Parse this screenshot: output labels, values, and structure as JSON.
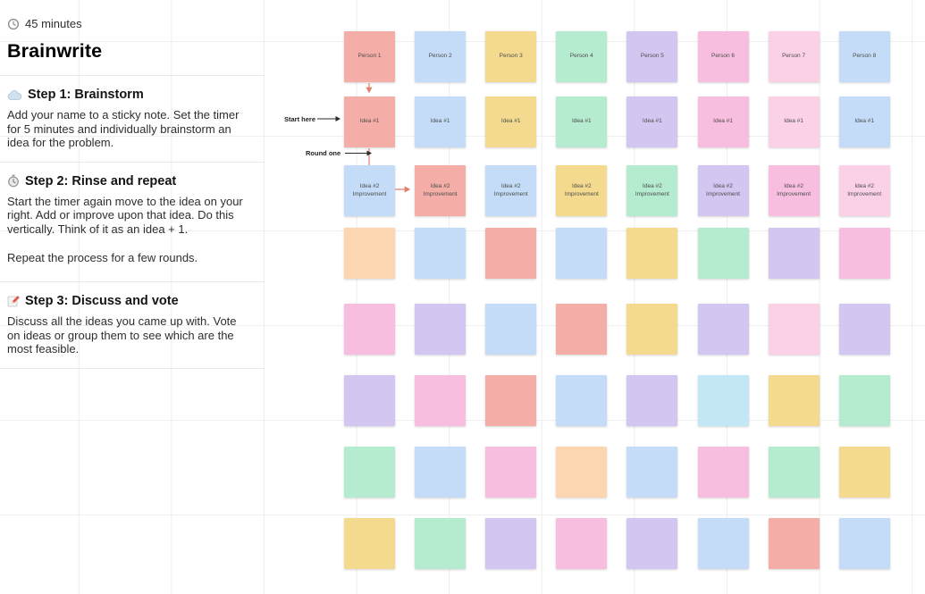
{
  "panel": {
    "duration": "45 minutes",
    "title": "Brainwrite",
    "steps": [
      {
        "icon": "cloud-icon",
        "heading": "Step 1: Brainstorm",
        "body": "Add your name to a sticky note. Set the timer for 5 minutes and individually brainstorm an idea for the problem."
      },
      {
        "icon": "timer-icon",
        "heading": "Step 2: Rinse and repeat",
        "body": "Start the timer again move to the idea on your right. Add or improve upon that idea. Do this vertically. Think of it as an idea + 1.",
        "body2": "Repeat the process for a few rounds."
      },
      {
        "icon": "memo-icon",
        "heading": "Step 3: Discuss and vote",
        "body": "Discuss all the ideas you came up with. Vote on ideas or group them to see which are the most feasible."
      }
    ]
  },
  "canvas": {
    "labels": {
      "start_here": "Start here",
      "round_one": "Round one"
    },
    "palette": {
      "red": "#f5aea7",
      "blue": "#c4dcf7",
      "yellow": "#f4da8e",
      "green": "#b5ebcf",
      "violet": "#d3c6f1",
      "pink": "#f8bedf",
      "lightpink": "#fad1e7",
      "peach": "#fbd6b1",
      "cyan": "#c3e7f4"
    },
    "connector_color": "#e0806f",
    "rows": [
      {
        "notes": [
          {
            "label": "Person 1",
            "color": "red"
          },
          {
            "label": "Person 2",
            "color": "blue"
          },
          {
            "label": "Person 3",
            "color": "yellow"
          },
          {
            "label": "Person 4",
            "color": "green"
          },
          {
            "label": "Person 5",
            "color": "violet"
          },
          {
            "label": "Person 6",
            "color": "pink"
          },
          {
            "label": "Person 7",
            "color": "lightpink"
          },
          {
            "label": "Person 8",
            "color": "blue"
          }
        ]
      },
      {
        "notes": [
          {
            "label": "Idea #1",
            "color": "red"
          },
          {
            "label": "Idea #1",
            "color": "blue"
          },
          {
            "label": "Idea #1",
            "color": "yellow"
          },
          {
            "label": "Idea #1",
            "color": "green"
          },
          {
            "label": "Idea #1",
            "color": "violet"
          },
          {
            "label": "Idea #1",
            "color": "pink"
          },
          {
            "label": "Idea #1",
            "color": "lightpink"
          },
          {
            "label": "Idea #1",
            "color": "blue"
          }
        ]
      },
      {
        "notes": [
          {
            "label": "Idea #2 Improvement",
            "color": "blue"
          },
          {
            "label": "Idea #2 Improvement",
            "color": "red"
          },
          {
            "label": "Idea #2 Improvement",
            "color": "blue"
          },
          {
            "label": "Idea #2 Improvement",
            "color": "yellow"
          },
          {
            "label": "Idea #2 Improvement",
            "color": "green"
          },
          {
            "label": "Idea #2 Improvement",
            "color": "violet"
          },
          {
            "label": "Idea #2 Improvement",
            "color": "pink"
          },
          {
            "label": "Idea #2 Improvement",
            "color": "lightpink"
          }
        ]
      },
      {
        "notes": [
          {
            "label": "",
            "color": "peach"
          },
          {
            "label": "",
            "color": "blue"
          },
          {
            "label": "",
            "color": "red"
          },
          {
            "label": "",
            "color": "blue"
          },
          {
            "label": "",
            "color": "yellow"
          },
          {
            "label": "",
            "color": "green"
          },
          {
            "label": "",
            "color": "violet"
          },
          {
            "label": "",
            "color": "pink"
          }
        ]
      },
      {
        "notes": [
          {
            "label": "",
            "color": "pink"
          },
          {
            "label": "",
            "color": "violet"
          },
          {
            "label": "",
            "color": "blue"
          },
          {
            "label": "",
            "color": "red"
          },
          {
            "label": "",
            "color": "yellow"
          },
          {
            "label": "",
            "color": "violet"
          },
          {
            "label": "",
            "color": "lightpink"
          },
          {
            "label": "",
            "color": "violet"
          }
        ]
      },
      {
        "notes": [
          {
            "label": "",
            "color": "violet"
          },
          {
            "label": "",
            "color": "pink"
          },
          {
            "label": "",
            "color": "red"
          },
          {
            "label": "",
            "color": "blue"
          },
          {
            "label": "",
            "color": "violet"
          },
          {
            "label": "",
            "color": "cyan"
          },
          {
            "label": "",
            "color": "yellow"
          },
          {
            "label": "",
            "color": "green"
          }
        ]
      },
      {
        "notes": [
          {
            "label": "",
            "color": "green"
          },
          {
            "label": "",
            "color": "blue"
          },
          {
            "label": "",
            "color": "pink"
          },
          {
            "label": "",
            "color": "peach"
          },
          {
            "label": "",
            "color": "blue"
          },
          {
            "label": "",
            "color": "pink"
          },
          {
            "label": "",
            "color": "green"
          },
          {
            "label": "",
            "color": "yellow"
          }
        ]
      },
      {
        "notes": [
          {
            "label": "",
            "color": "yellow"
          },
          {
            "label": "",
            "color": "green"
          },
          {
            "label": "",
            "color": "violet"
          },
          {
            "label": "",
            "color": "pink"
          },
          {
            "label": "",
            "color": "violet"
          },
          {
            "label": "",
            "color": "blue"
          },
          {
            "label": "",
            "color": "red"
          },
          {
            "label": "",
            "color": "blue"
          }
        ]
      }
    ]
  }
}
